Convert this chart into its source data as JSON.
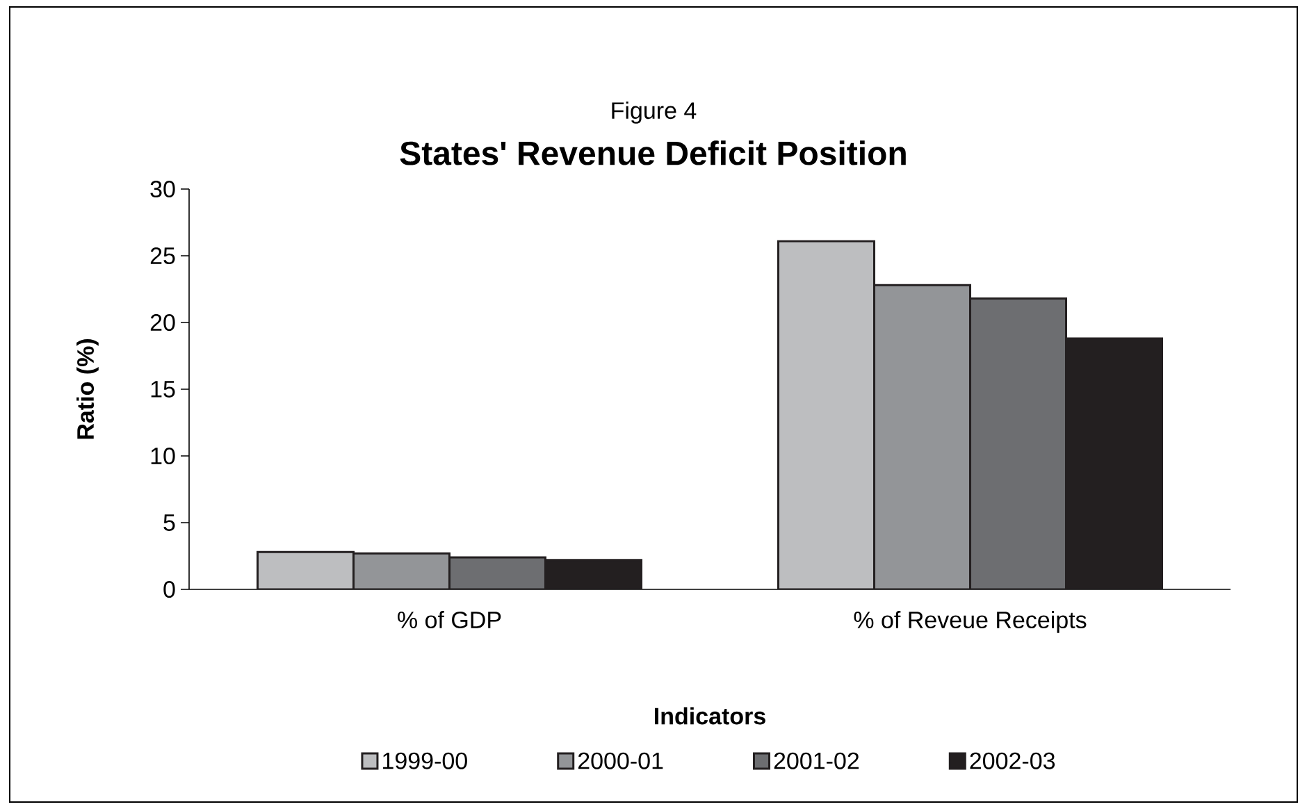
{
  "chart_data": {
    "type": "bar",
    "subtitle": "Figure 4",
    "title": "States' Revenue Deficit Position",
    "xlabel": "Indicators",
    "ylabel": "Ratio (%)",
    "categories": [
      "% of GDP",
      "% of Reveue Receipts"
    ],
    "series": [
      {
        "name": "1999-00",
        "color": "#bdbec0",
        "values": [
          2.8,
          26.1
        ]
      },
      {
        "name": "2000-01",
        "color": "#939598",
        "values": [
          2.7,
          22.8
        ]
      },
      {
        "name": "2001-02",
        "color": "#6d6e71",
        "values": [
          2.4,
          21.8
        ]
      },
      {
        "name": "2002-03",
        "color": "#231f20",
        "values": [
          2.2,
          18.8
        ]
      }
    ],
    "ylim": [
      0,
      30
    ],
    "yticks": [
      0,
      5,
      10,
      15,
      20,
      25,
      30
    ],
    "legend": "bottom"
  }
}
